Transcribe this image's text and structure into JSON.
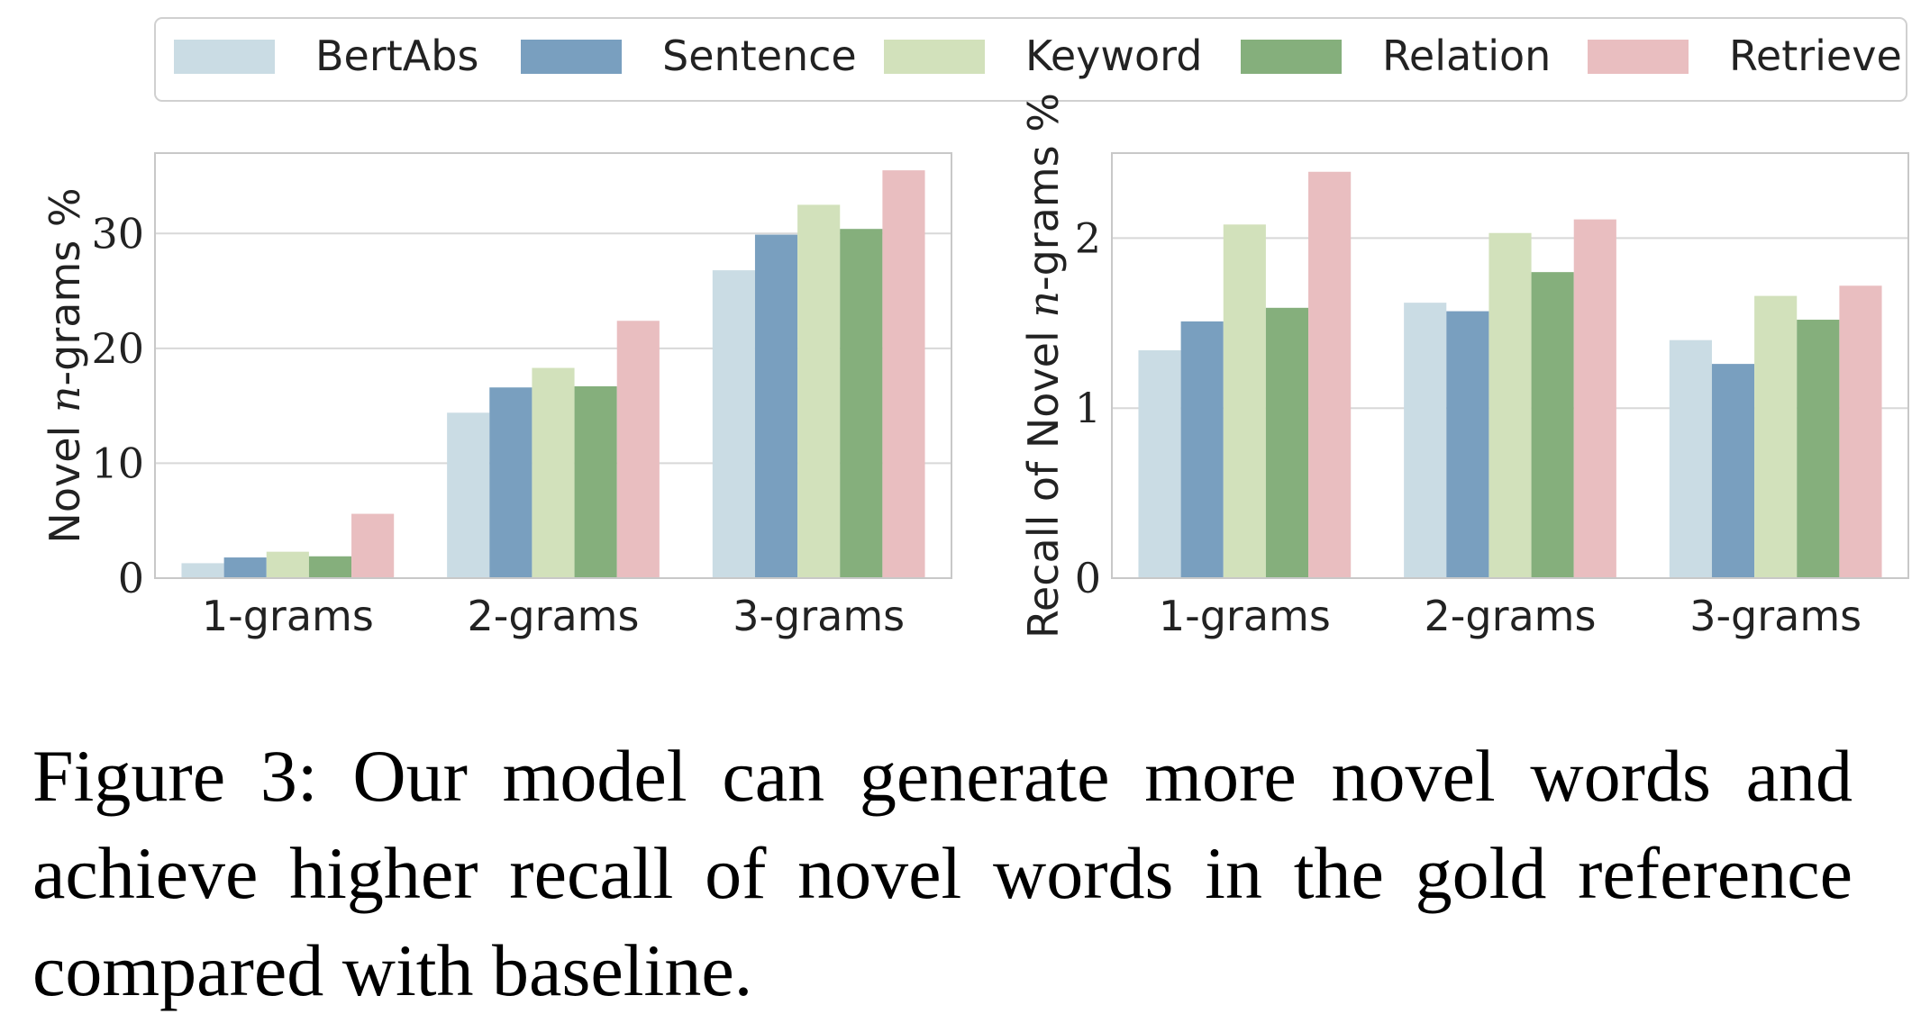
{
  "legend": {
    "items": [
      {
        "label": "BertAbs",
        "color": "#cadcE4"
      },
      {
        "label": "Sentence",
        "color": "#799fbf"
      },
      {
        "label": "Keyword",
        "color": "#d2e1bb"
      },
      {
        "label": "Relation",
        "color": "#85af7c"
      },
      {
        "label": "Retrieve",
        "color": "#e9bec0"
      }
    ]
  },
  "chart_data": [
    {
      "type": "bar",
      "categories": [
        "1-grams",
        "2-grams",
        "3-grams"
      ],
      "ylabel": "Novel n-grams %",
      "ylabel_parts": [
        "Novel ",
        "n",
        "-grams %"
      ],
      "ylim": [
        0,
        37
      ],
      "yticks": [
        0,
        10,
        20,
        30
      ],
      "grid": true,
      "series": [
        {
          "name": "BertAbs",
          "values": [
            1.3,
            14.4,
            26.8
          ]
        },
        {
          "name": "Sentence",
          "values": [
            1.8,
            16.6,
            29.9
          ]
        },
        {
          "name": "Keyword",
          "values": [
            2.3,
            18.3,
            32.5
          ]
        },
        {
          "name": "Relation",
          "values": [
            1.9,
            16.7,
            30.4
          ]
        },
        {
          "name": "Retrieve",
          "values": [
            5.6,
            22.4,
            35.5
          ]
        }
      ]
    },
    {
      "type": "bar",
      "categories": [
        "1-grams",
        "2-grams",
        "3-grams"
      ],
      "ylabel": "Recall of Novel n-grams %",
      "ylabel_parts": [
        "Recall of Novel ",
        "n",
        "-grams %"
      ],
      "ylim": [
        0,
        2.5
      ],
      "yticks": [
        0,
        1,
        2
      ],
      "grid": true,
      "series": [
        {
          "name": "BertAbs",
          "values": [
            1.34,
            1.62,
            1.4
          ]
        },
        {
          "name": "Sentence",
          "values": [
            1.51,
            1.57,
            1.26
          ]
        },
        {
          "name": "Keyword",
          "values": [
            2.08,
            2.03,
            1.66
          ]
        },
        {
          "name": "Relation",
          "values": [
            1.59,
            1.8,
            1.52
          ]
        },
        {
          "name": "Retrieve",
          "values": [
            2.39,
            2.11,
            1.72
          ]
        }
      ]
    }
  ],
  "caption": "Figure 3: Our model can generate more novel words and achieve higher recall of novel words in the gold reference compared with baseline."
}
